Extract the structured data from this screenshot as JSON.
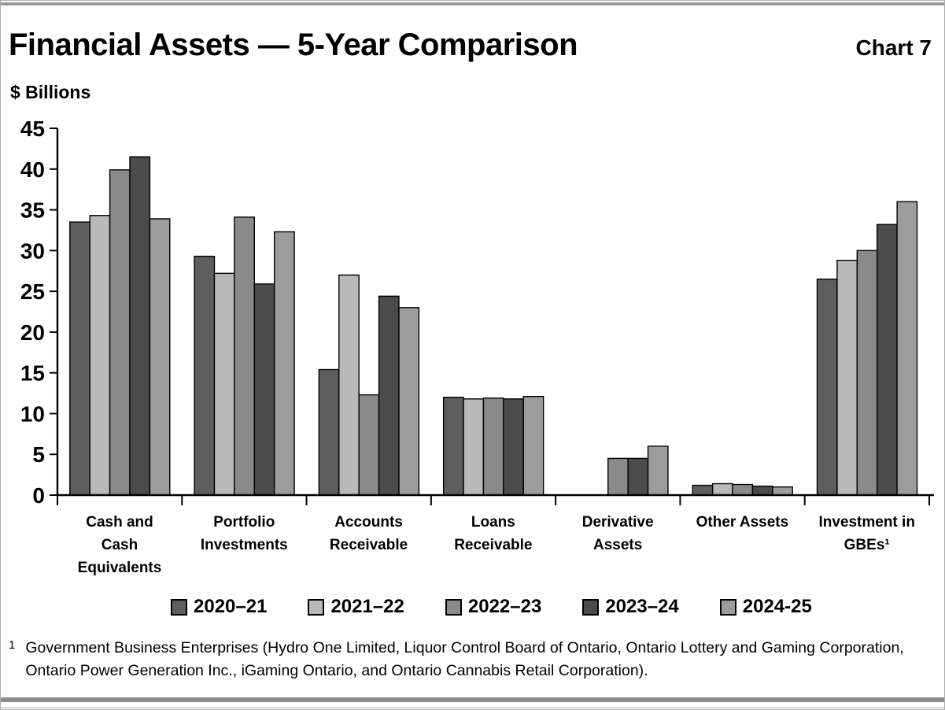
{
  "header": {
    "title": "Financial Assets — 5-Year Comparison",
    "chart_label": "Chart 7"
  },
  "footnote": {
    "marker": "1",
    "text": "Government Business Enterprises (Hydro One Limited, Liquor Control Board of Ontario, Ontario Lottery and Gaming Corporation,\nOntario Power Generation Inc., iGaming Ontario, and Ontario Cannabis Retail Corporation)."
  },
  "chart_data": {
    "type": "bar",
    "title": "Financial Assets — 5-Year Comparison",
    "chart_label": "Chart 7",
    "ylabel": "$ Billions",
    "xlabel": "",
    "ylim": [
      0,
      45
    ],
    "ytick_step": 5,
    "grid": false,
    "legend_position": "bottom",
    "categories": [
      "Cash and Cash Equivalents",
      "Portfolio Investments",
      "Accounts Receivable",
      "Loans Receivable",
      "Derivative Assets",
      "Other Assets",
      "Investment in GBEs¹"
    ],
    "categories_display": [
      "Cash and\nCash\nEquivalents",
      "Portfolio\nInvestments",
      "Accounts\nReceivable",
      "Loans\nReceivable",
      "Derivative\nAssets",
      "Other Assets",
      "Investment in\nGBEs¹"
    ],
    "series": [
      {
        "name": "2020–21",
        "color": "#5e5e5e",
        "values": [
          33.5,
          29.3,
          15.4,
          12.0,
          0,
          1.2,
          26.5
        ]
      },
      {
        "name": "2021–22",
        "color": "#b9b9b9",
        "values": [
          34.3,
          27.2,
          27.0,
          11.8,
          0,
          1.4,
          28.8
        ]
      },
      {
        "name": "2022–23",
        "color": "#8a8a8a",
        "values": [
          39.9,
          34.1,
          12.3,
          11.9,
          4.5,
          1.3,
          30.0
        ]
      },
      {
        "name": "2023–24",
        "color": "#4b4b4b",
        "values": [
          41.5,
          25.9,
          24.4,
          11.8,
          4.5,
          1.1,
          33.2
        ]
      },
      {
        "name": "2024-25",
        "color": "#9c9c9c",
        "values": [
          33.9,
          32.3,
          23.0,
          12.1,
          6.0,
          1.0,
          36.0
        ]
      }
    ]
  }
}
